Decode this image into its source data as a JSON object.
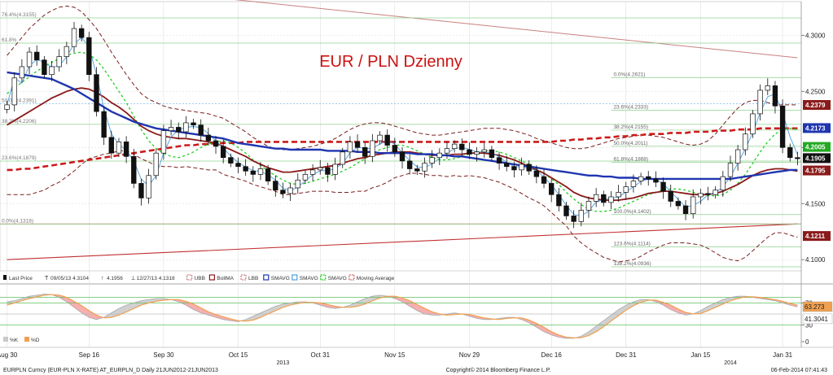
{
  "colors": {
    "background": "#ffffff",
    "grid": "#d9d9d9",
    "candle_up": "#ffffff",
    "candle_down": "#111111",
    "fib_line": "#8fd08f",
    "fib_line_blue": "#7fb8e8",
    "trend_line": "#c03030",
    "downtrend_line": "#c98080",
    "bollinger_band": "#7a1f1f",
    "bollinger_ma": "#8b1a1a",
    "sma_blue": "#1f35b0",
    "sma_light": "#4a9ee0",
    "sma_green": "#22cc22",
    "moving_average_red": "#cc1a1a",
    "title_red": "#cc1111",
    "rsi_orange": "#f0a050",
    "rsi_pink": "#f4a0a0",
    "rsi_gray": "#c8c8c8"
  },
  "chart_data": {
    "type": "candlestick",
    "title": "EUR / PLN Dzienny",
    "instrument": "EURPLN Curncy (EUR-PLN X-RATE) AT_EURPLN_D  Daily 21JUN2012-21JUN2013",
    "copyright": "Copyright© 2014 Bloomberg Finance L.P.",
    "timestamp": "06-Feb-2014 07:41:43",
    "ylim": [
      4.09,
      4.33
    ],
    "yticks": [
      "4.3000",
      "4.2500",
      "4.2000",
      "4.1500",
      "4.1000"
    ],
    "ytick_values": [
      4.3,
      4.25,
      4.2,
      4.15,
      4.1
    ],
    "x_labels": [
      "Aug 30",
      "Sep 16",
      "Sep 30",
      "Oct 15",
      "Oct 31",
      "Nov 15",
      "Nov 29",
      "Dec 16",
      "Dec 31",
      "Jan 15",
      "Jan 31"
    ],
    "x_label_index": [
      0,
      11,
      21,
      31,
      42,
      52,
      62,
      73,
      83,
      93,
      104
    ],
    "year_labels": [
      "2013",
      "2014"
    ],
    "year_label_index": [
      37,
      97
    ],
    "legend": [
      {
        "symbol": "candle-icon",
        "label": "Last Price"
      },
      {
        "symbol": "T",
        "label": "09/05/13 4.3104"
      },
      {
        "symbol": "↑",
        "label": "4.1956"
      },
      {
        "symbol": "⊥",
        "label": "12/27/13 4.1318"
      },
      {
        "symbol": "band",
        "label": "UBB"
      },
      {
        "symbol": "line",
        "label": "BollMA"
      },
      {
        "symbol": "band",
        "label": "LBB"
      },
      {
        "symbol": "line",
        "label": "SMAVG"
      },
      {
        "symbol": "line",
        "label": "SMAVG"
      },
      {
        "symbol": "dash",
        "label": "SMAVG"
      },
      {
        "symbol": "band",
        "label": "Moving Average"
      }
    ],
    "price_badges": [
      {
        "label": "4.2379",
        "value": 4.2379,
        "bg": "#8b1a1a",
        "fg": "#ffffff"
      },
      {
        "label": "4.2173",
        "value": 4.2173,
        "bg": "#1f35b0",
        "fg": "#ffffff"
      },
      {
        "label": "4.2005",
        "value": 4.2005,
        "bg": "#22aa22",
        "fg": "#ffffff"
      },
      {
        "label": "4.1905",
        "value": 4.1905,
        "bg": "#111111",
        "fg": "#ffffff"
      },
      {
        "label": "4.1795",
        "value": 4.1795,
        "bg": "#8b1a1a",
        "fg": "#ffffff"
      },
      {
        "label": "4.1211",
        "value": 4.1211,
        "bg": "#8b1a1a",
        "fg": "#ffffff"
      }
    ],
    "fib_left": [
      {
        "label": "76.4%(4.3155)",
        "value": 4.3155
      },
      {
        "label": "61.8%",
        "value": 4.293
      },
      {
        "label": "50.0%(4.2391)",
        "value": 4.2391
      },
      {
        "label": "38.2%(4.2206)",
        "value": 4.2206
      },
      {
        "label": "23.6%(4.1879)",
        "value": 4.1879
      },
      {
        "label": "0.0%(4.1318)",
        "value": 4.1318
      }
    ],
    "fib_right": [
      {
        "label": "0.0%(4.2621)",
        "value": 4.2621
      },
      {
        "label": "23.6%(4.2333)",
        "value": 4.2333
      },
      {
        "label": "38.2%(4.2155)",
        "value": 4.2155
      },
      {
        "label": "50.0%(4.2011)",
        "value": 4.2011
      },
      {
        "label": "61.8%(4.1868)",
        "value": 4.1868
      },
      {
        "label": "100.0%(4.1402)",
        "value": 4.1402
      },
      {
        "label": "123.6%(4.1114)",
        "value": 4.1114
      },
      {
        "label": "138.2%(4.0936)",
        "value": 4.0936
      }
    ],
    "close": [
      4.238,
      4.262,
      4.272,
      4.285,
      4.278,
      4.265,
      4.272,
      4.281,
      4.29,
      4.306,
      4.298,
      4.265,
      4.232,
      4.209,
      4.195,
      4.205,
      4.192,
      4.168,
      4.155,
      4.175,
      4.195,
      4.215,
      4.218,
      4.214,
      4.222,
      4.22,
      4.211,
      4.206,
      4.201,
      4.191,
      4.186,
      4.183,
      4.179,
      4.176,
      4.181,
      4.17,
      4.162,
      4.159,
      4.164,
      4.171,
      4.176,
      4.18,
      4.182,
      4.176,
      4.185,
      4.196,
      4.205,
      4.2,
      4.192,
      4.206,
      4.211,
      4.202,
      4.196,
      4.188,
      4.181,
      4.179,
      4.186,
      4.191,
      4.195,
      4.199,
      4.203,
      4.198,
      4.194,
      4.196,
      4.198,
      4.191,
      4.186,
      4.183,
      4.18,
      4.185,
      4.179,
      4.174,
      4.168,
      4.158,
      4.148,
      4.139,
      4.134,
      4.144,
      4.152,
      4.158,
      4.151,
      4.156,
      4.16,
      4.165,
      4.17,
      4.174,
      4.172,
      4.169,
      4.161,
      4.152,
      4.148,
      4.141,
      4.156,
      4.159,
      4.158,
      4.162,
      4.174,
      4.186,
      4.198,
      4.212,
      4.23,
      4.251,
      4.255,
      4.237,
      4.2,
      4.191,
      4.19
    ],
    "sma_blue": [
      4.267,
      4.266,
      4.265,
      4.264,
      4.263,
      4.262,
      4.261,
      4.258,
      4.255,
      4.252,
      4.248,
      4.244,
      4.24,
      4.236,
      4.232,
      4.229,
      4.226,
      4.223,
      4.221,
      4.219,
      4.217,
      4.216,
      4.215,
      4.214,
      4.213,
      4.212,
      4.211,
      4.21,
      4.209,
      4.208,
      4.206,
      4.204,
      4.203,
      4.202,
      4.201,
      4.2,
      4.199,
      4.199,
      4.198,
      4.198,
      4.198,
      4.198,
      4.198,
      4.197,
      4.197,
      4.197,
      4.197,
      4.196,
      4.196,
      4.196,
      4.195,
      4.195,
      4.195,
      4.195,
      4.195,
      4.194,
      4.194,
      4.194,
      4.193,
      4.193,
      4.192,
      4.192,
      4.191,
      4.19,
      4.189,
      4.188,
      4.187,
      4.186,
      4.185,
      4.184,
      4.183,
      4.182,
      4.181,
      4.18,
      4.179,
      4.178,
      4.177,
      4.176,
      4.175,
      4.175,
      4.174,
      4.174,
      4.173,
      4.173,
      4.173,
      4.172,
      4.172,
      4.172,
      4.172,
      4.172,
      4.172,
      4.172,
      4.172,
      4.172,
      4.172,
      4.172,
      4.172,
      4.172,
      4.173,
      4.174,
      4.175,
      4.176,
      4.177,
      4.178,
      4.179,
      4.18,
      4.18
    ],
    "boll_ma": [
      4.22,
      4.224,
      4.228,
      4.232,
      4.236,
      4.24,
      4.244,
      4.247,
      4.25,
      4.252,
      4.253,
      4.252,
      4.249,
      4.245,
      4.24,
      4.236,
      4.231,
      4.225,
      4.219,
      4.215,
      4.212,
      4.21,
      4.209,
      4.208,
      4.208,
      4.207,
      4.206,
      4.205,
      4.204,
      4.201,
      4.198,
      4.195,
      4.192,
      4.188,
      4.185,
      4.182,
      4.18,
      4.178,
      4.178,
      4.179,
      4.18,
      4.181,
      4.182,
      4.183,
      4.184,
      4.186,
      4.188,
      4.19,
      4.191,
      4.193,
      4.194,
      4.195,
      4.196,
      4.196,
      4.196,
      4.195,
      4.194,
      4.193,
      4.193,
      4.193,
      4.194,
      4.194,
      4.195,
      4.195,
      4.195,
      4.194,
      4.193,
      4.191,
      4.189,
      4.186,
      4.183,
      4.18,
      4.177,
      4.173,
      4.169,
      4.165,
      4.16,
      4.157,
      4.155,
      4.154,
      4.153,
      4.153,
      4.153,
      4.154,
      4.155,
      4.157,
      4.159,
      4.16,
      4.161,
      4.161,
      4.16,
      4.159,
      4.158,
      4.158,
      4.158,
      4.159,
      4.161,
      4.164,
      4.167,
      4.171,
      4.175,
      4.178,
      4.18,
      4.181,
      4.181,
      4.18,
      4.179
    ],
    "ubb": [
      4.282,
      4.29,
      4.298,
      4.306,
      4.312,
      4.318,
      4.322,
      4.325,
      4.326,
      4.325,
      4.321,
      4.314,
      4.306,
      4.296,
      4.285,
      4.275,
      4.265,
      4.256,
      4.248,
      4.243,
      4.24,
      4.237,
      4.235,
      4.234,
      4.233,
      4.232,
      4.231,
      4.23,
      4.228,
      4.226,
      4.222,
      4.218,
      4.214,
      4.209,
      4.205,
      4.201,
      4.199,
      4.198,
      4.198,
      4.199,
      4.2,
      4.201,
      4.203,
      4.205,
      4.208,
      4.212,
      4.216,
      4.219,
      4.221,
      4.222,
      4.222,
      4.221,
      4.219,
      4.217,
      4.215,
      4.213,
      4.212,
      4.211,
      4.211,
      4.212,
      4.213,
      4.214,
      4.215,
      4.216,
      4.217,
      4.217,
      4.217,
      4.216,
      4.215,
      4.213,
      4.211,
      4.208,
      4.206,
      4.204,
      4.202,
      4.2,
      4.199,
      4.199,
      4.2,
      4.202,
      4.204,
      4.206,
      4.208,
      4.209,
      4.21,
      4.211,
      4.211,
      4.21,
      4.209,
      4.207,
      4.205,
      4.203,
      4.202,
      4.203,
      4.206,
      4.212,
      4.22,
      4.228,
      4.235,
      4.24,
      4.242,
      4.242,
      4.24,
      4.238,
      4.238,
      4.238,
      4.238
    ],
    "lbb": [
      4.158,
      4.158,
      4.158,
      4.158,
      4.16,
      4.162,
      4.166,
      4.169,
      4.174,
      4.179,
      4.185,
      4.19,
      4.192,
      4.194,
      4.195,
      4.197,
      4.197,
      4.194,
      4.19,
      4.187,
      4.184,
      4.183,
      4.183,
      4.182,
      4.183,
      4.182,
      4.181,
      4.18,
      4.18,
      4.176,
      4.174,
      4.172,
      4.17,
      4.167,
      4.165,
      4.163,
      4.161,
      4.158,
      4.158,
      4.159,
      4.16,
      4.161,
      4.161,
      4.161,
      4.16,
      4.16,
      4.16,
      4.161,
      4.161,
      4.164,
      4.166,
      4.169,
      4.173,
      4.175,
      4.177,
      4.177,
      4.176,
      4.175,
      4.175,
      4.174,
      4.175,
      4.174,
      4.175,
      4.174,
      4.173,
      4.171,
      4.169,
      4.166,
      4.163,
      4.159,
      4.155,
      4.152,
      4.148,
      4.142,
      4.136,
      4.13,
      4.121,
      4.115,
      4.11,
      4.106,
      4.102,
      4.1,
      4.098,
      4.099,
      4.1,
      4.103,
      4.107,
      4.11,
      4.113,
      4.115,
      4.115,
      4.115,
      4.114,
      4.113,
      4.11,
      4.106,
      4.102,
      4.1,
      4.099,
      4.102,
      4.108,
      4.114,
      4.12,
      4.124,
      4.124,
      4.122,
      4.12
    ],
    "sma_green": [
      4.248,
      4.253,
      4.258,
      4.263,
      4.268,
      4.272,
      4.276,
      4.279,
      4.282,
      4.284,
      4.285,
      4.283,
      4.278,
      4.27,
      4.26,
      4.25,
      4.24,
      4.228,
      4.216,
      4.206,
      4.199,
      4.195,
      4.192,
      4.191,
      4.193,
      4.196,
      4.2,
      4.203,
      4.205,
      4.206,
      4.204,
      4.2,
      4.195,
      4.189,
      4.184,
      4.179,
      4.175,
      4.171,
      4.168,
      4.167,
      4.168,
      4.17,
      4.172,
      4.174,
      4.176,
      4.179,
      4.182,
      4.186,
      4.19,
      4.194,
      4.198,
      4.2,
      4.202,
      4.202,
      4.2,
      4.197,
      4.194,
      4.191,
      4.189,
      4.189,
      4.19,
      4.192,
      4.194,
      4.196,
      4.197,
      4.197,
      4.196,
      4.194,
      4.191,
      4.188,
      4.185,
      4.181,
      4.177,
      4.172,
      4.167,
      4.16,
      4.154,
      4.149,
      4.145,
      4.143,
      4.143,
      4.144,
      4.146,
      4.149,
      4.152,
      4.155,
      4.158,
      4.16,
      4.162,
      4.163,
      4.163,
      4.162,
      4.16,
      4.158,
      4.157,
      4.157,
      4.158,
      4.162,
      4.168,
      4.176,
      4.186,
      4.196,
      4.205,
      4.212,
      4.216,
      4.217,
      4.216
    ],
    "ma_red_dashed": [
      4.18,
      4.18,
      4.181,
      4.181,
      4.182,
      4.183,
      4.184,
      4.185,
      4.186,
      4.187,
      4.188,
      4.189,
      4.19,
      4.191,
      4.192,
      4.193,
      4.194,
      4.195,
      4.196,
      4.197,
      4.198,
      4.199,
      4.2,
      4.201,
      4.202,
      4.202,
      4.203,
      4.203,
      4.204,
      4.204,
      4.204,
      4.204,
      4.205,
      4.205,
      4.205,
      4.205,
      4.205,
      4.205,
      4.205,
      4.205,
      4.205,
      4.205,
      4.205,
      4.205,
      4.205,
      4.205,
      4.205,
      4.205,
      4.205,
      4.205,
      4.205,
      4.205,
      4.205,
      4.205,
      4.205,
      4.205,
      4.205,
      4.205,
      4.205,
      4.205,
      4.205,
      4.205,
      4.205,
      4.205,
      4.205,
      4.205,
      4.205,
      4.205,
      4.205,
      4.205,
      4.205,
      4.205,
      4.205,
      4.205,
      4.206,
      4.206,
      4.207,
      4.207,
      4.208,
      4.208,
      4.209,
      4.209,
      4.21,
      4.21,
      4.211,
      4.211,
      4.212,
      4.212,
      4.212,
      4.213,
      4.213,
      4.213,
      4.214,
      4.214,
      4.214,
      4.215,
      4.215,
      4.215,
      4.216,
      4.216,
      4.216,
      4.217,
      4.217,
      4.217,
      4.217,
      4.217,
      4.217
    ],
    "trend_line_up": {
      "from": [
        0,
        4.1
      ],
      "to": [
        106,
        4.1318
      ]
    },
    "trend_line_down": {
      "from": [
        20,
        4.339
      ],
      "to": [
        106,
        4.28
      ]
    },
    "indicator": {
      "ylim": [
        0,
        100
      ],
      "yticks": [
        "70",
        "30",
        "0"
      ],
      "ytick_values": [
        70,
        30,
        0
      ],
      "hlines": [
        80,
        70,
        50,
        30
      ],
      "badges": [
        {
          "label": "63.273",
          "value": 63.273,
          "bg": "#f0a050",
          "fg": "#222222"
        },
        {
          "label": "41.3041",
          "value": 41.3041,
          "bg": "#ffffff",
          "fg": "#222222"
        }
      ],
      "legend": [
        {
          "color": "#c8c8c8",
          "label": "%K"
        },
        {
          "color": "#f0a050",
          "label": "%D"
        }
      ],
      "k": [
        72,
        74,
        78,
        82,
        84,
        86,
        85,
        80,
        72,
        62,
        52,
        44,
        40,
        44,
        52,
        60,
        66,
        70,
        74,
        76,
        78,
        78,
        76,
        72,
        66,
        58,
        52,
        48,
        44,
        40,
        38,
        36,
        40,
        46,
        52,
        58,
        64,
        68,
        70,
        72,
        72,
        70,
        66,
        62,
        60,
        62,
        66,
        72,
        78,
        82,
        84,
        82,
        78,
        72,
        64,
        56,
        50,
        48,
        48,
        50,
        52,
        50,
        46,
        42,
        40,
        40,
        42,
        44,
        44,
        40,
        34,
        26,
        18,
        12,
        8,
        6,
        6,
        10,
        18,
        28,
        38,
        48,
        58,
        66,
        72,
        76,
        76,
        72,
        66,
        58,
        52,
        48,
        50,
        56,
        64,
        70,
        76,
        80,
        82,
        82,
        80,
        78,
        76,
        74,
        70,
        66,
        63
      ],
      "d": [
        66,
        70,
        74,
        78,
        81,
        84,
        85,
        84,
        80,
        73,
        65,
        56,
        48,
        43,
        44,
        48,
        54,
        60,
        66,
        70,
        73,
        75,
        76,
        76,
        73,
        68,
        61,
        54,
        49,
        45,
        41,
        38,
        37,
        39,
        44,
        50,
        56,
        62,
        66,
        69,
        71,
        71,
        70,
        67,
        64,
        62,
        62,
        64,
        68,
        74,
        79,
        82,
        82,
        79,
        74,
        67,
        60,
        54,
        50,
        48,
        49,
        50,
        49,
        46,
        43,
        41,
        40,
        42,
        43,
        43,
        39,
        33,
        26,
        18,
        12,
        8,
        7,
        7,
        11,
        18,
        27,
        37,
        47,
        57,
        65,
        71,
        75,
        75,
        71,
        66,
        59,
        53,
        50,
        51,
        56,
        62,
        68,
        74,
        78,
        81,
        81,
        80,
        78,
        76,
        73,
        69,
        66
      ]
    }
  }
}
